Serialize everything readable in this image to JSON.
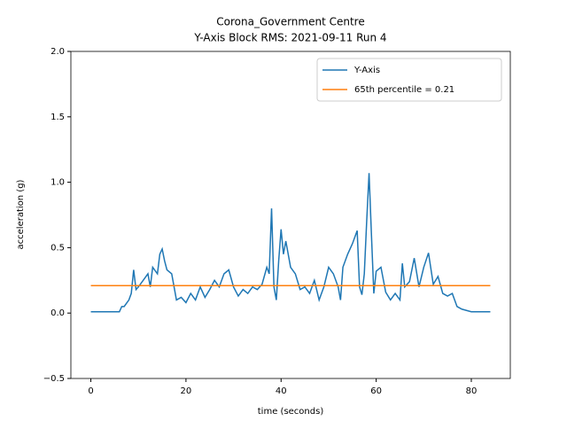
{
  "chart_data": {
    "type": "line",
    "title": "Corona_Government Centre",
    "subtitle": "Y-Axis Block RMS: 2021-09-11 Run 4",
    "x_label": "time (seconds)",
    "y_label": "acceleration (g)",
    "xlim": [
      -4.2,
      88.2
    ],
    "ylim": [
      -0.5,
      2.0
    ],
    "xticks": [
      0,
      20,
      40,
      60,
      80
    ],
    "yticks": [
      {
        "value": -0.5,
        "label": "−0.5"
      },
      {
        "value": 0,
        "label": "0.0"
      },
      {
        "value": 0.5,
        "label": "0.5"
      },
      {
        "value": 1,
        "label": "1.0"
      },
      {
        "value": 1.5,
        "label": "1.5"
      },
      {
        "value": 2,
        "label": "2.0"
      }
    ],
    "legend": "upper right",
    "series": [
      {
        "name": "Y-Axis",
        "color": "#1f77b4",
        "x": [
          0,
          6,
          6.5,
          7,
          8,
          8.5,
          9,
          9.5,
          10,
          11,
          12,
          12.5,
          13,
          14,
          14.5,
          15,
          15.5,
          16,
          17,
          17.5,
          18,
          19,
          20,
          21,
          22,
          23,
          24,
          25,
          26,
          27,
          28,
          29,
          30,
          31,
          32,
          33,
          34,
          35,
          36,
          37,
          37.5,
          38,
          38.5,
          39,
          39.5,
          40,
          40.5,
          41,
          42,
          43,
          44,
          45,
          46,
          47,
          48,
          49,
          50,
          51,
          52,
          52.5,
          53,
          54,
          55,
          56,
          56.5,
          57,
          57.5,
          58,
          58.5,
          59,
          59.5,
          60,
          61,
          62,
          63,
          64,
          65,
          65.5,
          66,
          67,
          68,
          69,
          70,
          71,
          72,
          73,
          74,
          75,
          76,
          77,
          78,
          79,
          80,
          84
        ],
        "values": [
          0.01,
          0.01,
          0.05,
          0.05,
          0.1,
          0.15,
          0.33,
          0.18,
          0.2,
          0.25,
          0.3,
          0.2,
          0.35,
          0.3,
          0.45,
          0.49,
          0.4,
          0.33,
          0.3,
          0.2,
          0.1,
          0.12,
          0.08,
          0.15,
          0.1,
          0.2,
          0.12,
          0.18,
          0.25,
          0.2,
          0.3,
          0.33,
          0.2,
          0.13,
          0.18,
          0.15,
          0.2,
          0.18,
          0.22,
          0.35,
          0.3,
          0.8,
          0.2,
          0.1,
          0.4,
          0.64,
          0.45,
          0.55,
          0.35,
          0.3,
          0.18,
          0.2,
          0.15,
          0.25,
          0.1,
          0.2,
          0.35,
          0.3,
          0.2,
          0.1,
          0.35,
          0.45,
          0.53,
          0.63,
          0.2,
          0.14,
          0.3,
          0.7,
          1.07,
          0.6,
          0.15,
          0.32,
          0.35,
          0.16,
          0.1,
          0.15,
          0.1,
          0.38,
          0.2,
          0.24,
          0.42,
          0.2,
          0.35,
          0.46,
          0.22,
          0.28,
          0.15,
          0.13,
          0.15,
          0.05,
          0.03,
          0.02,
          0.01,
          0.01
        ]
      },
      {
        "name": "65th percentile = 0.21",
        "color": "#ff7f0e",
        "x": [
          0,
          84
        ],
        "values": [
          0.21,
          0.21
        ]
      }
    ]
  }
}
